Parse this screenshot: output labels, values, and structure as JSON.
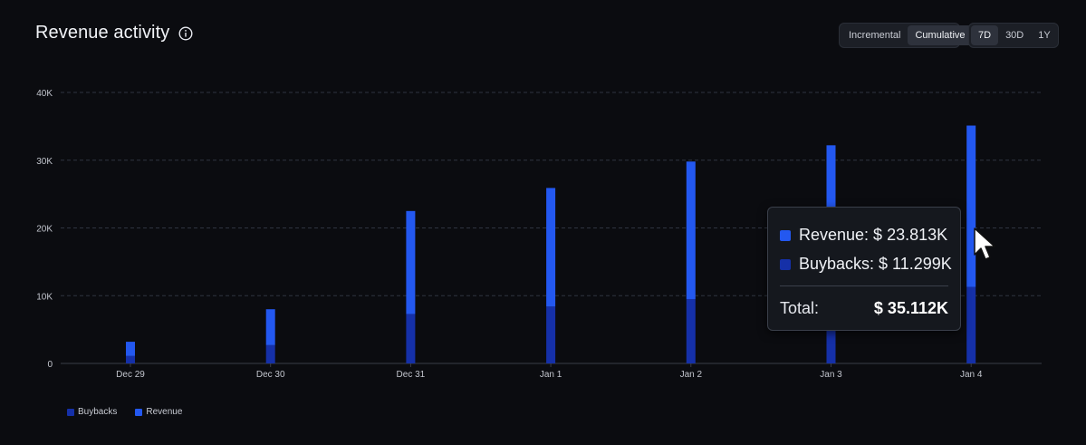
{
  "header": {
    "title": "Revenue activity"
  },
  "controls": {
    "mode": [
      {
        "label": "Incremental",
        "active": false
      },
      {
        "label": "Cumulative",
        "active": true
      }
    ],
    "range": [
      {
        "label": "7D",
        "active": true
      },
      {
        "label": "30D",
        "active": false
      },
      {
        "label": "1Y",
        "active": false
      }
    ]
  },
  "chart_data": {
    "type": "bar",
    "stacked": true,
    "categories": [
      "Dec 29",
      "Dec 30",
      "Dec 31",
      "Jan 1",
      "Jan 2",
      "Jan 3",
      "Jan 4"
    ],
    "series": [
      {
        "name": "Buybacks",
        "color": "#1530a8",
        "values": [
          1100,
          2700,
          7300,
          8400,
          9500,
          10400,
          11299
        ]
      },
      {
        "name": "Revenue",
        "color": "#2358f0",
        "values": [
          2100,
          5300,
          15200,
          17500,
          20300,
          21800,
          23813
        ]
      }
    ],
    "yticks": [
      "0",
      "10K",
      "20K",
      "30K",
      "40K"
    ],
    "ylim": [
      0,
      40000
    ],
    "grid": true,
    "legend_position": "bottom-left"
  },
  "tooltip": {
    "revenue_label": "Revenue: $ 23.813K",
    "buybacks_label": "Buybacks: $ 11.299K",
    "total_label": "Total:",
    "total_value": "$ 35.112K"
  },
  "colors": {
    "background": "#0b0c10",
    "revenue": "#2358f0",
    "buybacks": "#1530a8"
  },
  "icons": {
    "info": "info-icon",
    "cursor": "pointer-cursor-icon"
  }
}
